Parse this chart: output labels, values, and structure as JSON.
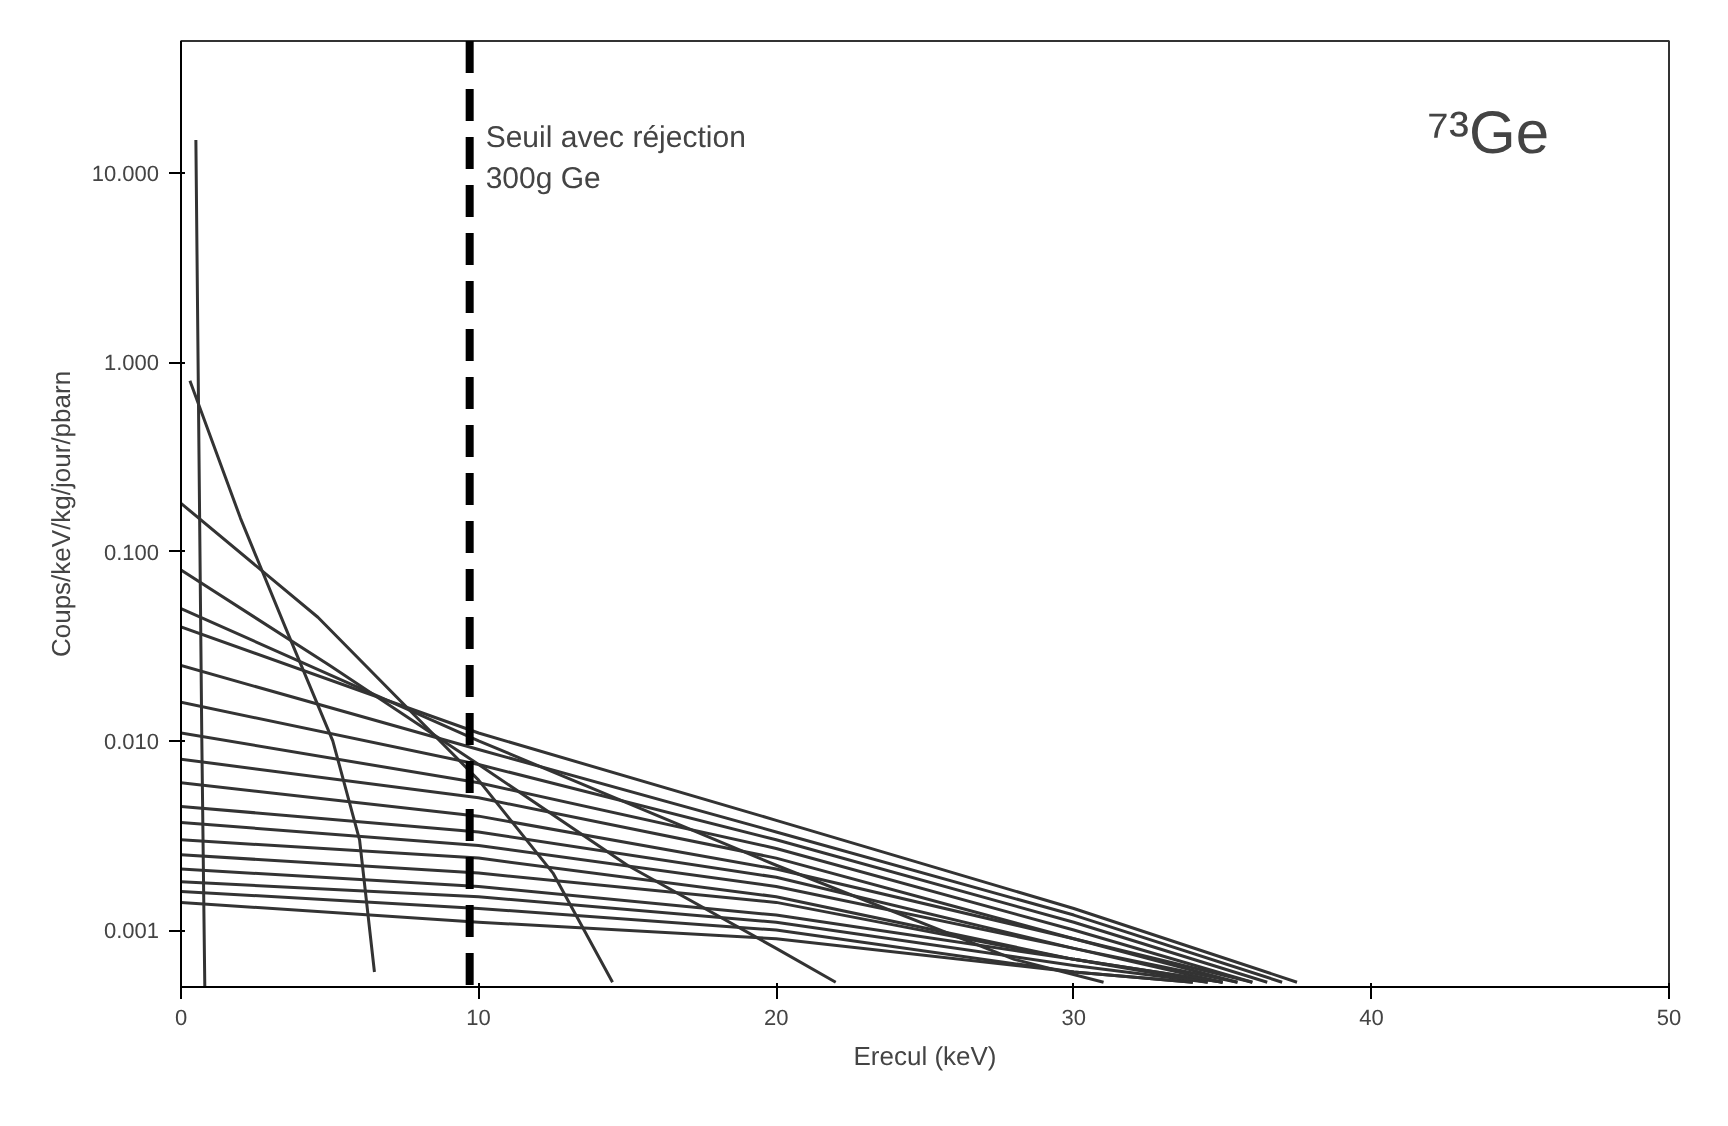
{
  "chart_data": {
    "type": "line",
    "xlabel": "Erecul (keV)",
    "ylabel": "Coups/keV/kg/jour/pbarn",
    "log": "y",
    "grid": false,
    "marker": "none",
    "line_style": "solid",
    "xlim": [
      0,
      50
    ],
    "xticks": [
      0,
      10,
      20,
      30,
      40,
      50
    ],
    "ylim": [
      0.0005,
      50
    ],
    "yticks": [
      {
        "value": 0.001,
        "label": "0.001"
      },
      {
        "value": 0.01,
        "label": "0.010"
      },
      {
        "value": 0.1,
        "label": "0.100"
      },
      {
        "value": 1,
        "label": "1.000"
      },
      {
        "value": 10,
        "label": "10.000"
      }
    ],
    "annotations": [
      "⁷³Ge"
    ],
    "ref_lines": [
      {
        "axis": "x",
        "value": 9.7,
        "label": "Seuil avec réjection\n300g Ge",
        "color": "#000000",
        "line_style": "dashed"
      }
    ],
    "series": [
      {
        "color": "#333333",
        "x": [
          0.5,
          0.7,
          0.8
        ],
        "values": [
          15,
          0.01,
          0.0005
        ]
      },
      {
        "color": "#333333",
        "x": [
          0.3,
          2,
          3.5,
          5.1,
          6,
          6.5
        ],
        "values": [
          0.8,
          0.15,
          0.04,
          0.01,
          0.003,
          0.0006
        ]
      },
      {
        "color": "#333333",
        "x": [
          0,
          4.6,
          10,
          12.5,
          14.5
        ],
        "values": [
          0.18,
          0.045,
          0.0062,
          0.002,
          0.00053
        ]
      },
      {
        "color": "#333333",
        "x": [
          0,
          5,
          10,
          15,
          20,
          22
        ],
        "values": [
          0.08,
          0.025,
          0.0075,
          0.0022,
          0.0008,
          0.00053
        ]
      },
      {
        "color": "#333333",
        "x": [
          0,
          10,
          20,
          28,
          31
        ],
        "values": [
          0.05,
          0.01,
          0.0022,
          0.0007,
          0.00053
        ]
      },
      {
        "color": "#333333",
        "x": [
          0,
          10,
          20,
          30,
          37.5
        ],
        "values": [
          0.04,
          0.011,
          0.0038,
          0.0013,
          0.00053
        ]
      },
      {
        "color": "#333333",
        "x": [
          0,
          10,
          20,
          30,
          37
        ],
        "values": [
          0.025,
          0.009,
          0.0033,
          0.0012,
          0.00053
        ]
      },
      {
        "color": "#333333",
        "x": [
          0,
          10,
          20,
          30,
          36.5
        ],
        "values": [
          0.016,
          0.0075,
          0.003,
          0.0011,
          0.00053
        ]
      },
      {
        "color": "#333333",
        "x": [
          0,
          10,
          20,
          30,
          36
        ],
        "values": [
          0.011,
          0.006,
          0.0027,
          0.001,
          0.00053
        ]
      },
      {
        "color": "#333333",
        "x": [
          0,
          10,
          20,
          30,
          36
        ],
        "values": [
          0.008,
          0.005,
          0.0024,
          0.0009,
          0.00053
        ]
      },
      {
        "color": "#333333",
        "x": [
          0,
          10,
          20,
          30,
          35.5
        ],
        "values": [
          0.006,
          0.004,
          0.0021,
          0.0009,
          0.00053
        ]
      },
      {
        "color": "#333333",
        "x": [
          0,
          10,
          20,
          30,
          35.5
        ],
        "values": [
          0.0045,
          0.0033,
          0.0019,
          0.0008,
          0.00053
        ]
      },
      {
        "color": "#333333",
        "x": [
          0,
          10,
          20,
          30,
          35
        ],
        "values": [
          0.0037,
          0.0028,
          0.0017,
          0.0008,
          0.00053
        ]
      },
      {
        "color": "#333333",
        "x": [
          0,
          10,
          20,
          30,
          35
        ],
        "values": [
          0.003,
          0.0024,
          0.0015,
          0.0007,
          0.00053
        ]
      },
      {
        "color": "#333333",
        "x": [
          0,
          10,
          20,
          30,
          35
        ],
        "values": [
          0.0025,
          0.002,
          0.0014,
          0.0007,
          0.00053
        ]
      },
      {
        "color": "#333333",
        "x": [
          0,
          10,
          20,
          30,
          34.5
        ],
        "values": [
          0.0021,
          0.0017,
          0.0012,
          0.0007,
          0.00053
        ]
      },
      {
        "color": "#333333",
        "x": [
          0,
          10,
          20,
          30,
          34.5
        ],
        "values": [
          0.0018,
          0.0015,
          0.0011,
          0.00065,
          0.00053
        ]
      },
      {
        "color": "#333333",
        "x": [
          0,
          10,
          20,
          30,
          34
        ],
        "values": [
          0.0016,
          0.0013,
          0.001,
          0.0006,
          0.00053
        ]
      },
      {
        "color": "#333333",
        "x": [
          0,
          10,
          20,
          30,
          34
        ],
        "values": [
          0.0014,
          0.0011,
          0.0009,
          0.0006,
          0.00053
        ]
      }
    ]
  }
}
